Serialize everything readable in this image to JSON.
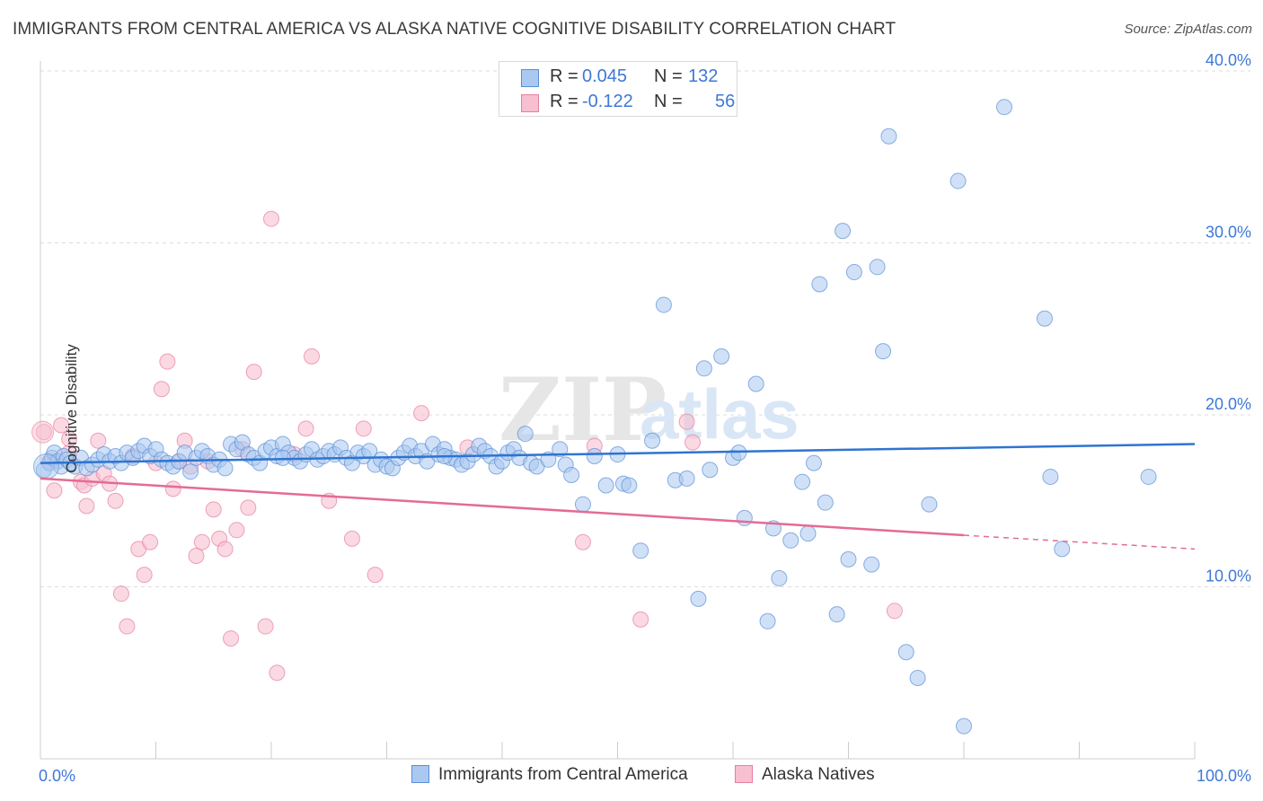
{
  "title": "IMMIGRANTS FROM CENTRAL AMERICA VS ALASKA NATIVE COGNITIVE DISABILITY CORRELATION CHART",
  "source": "Source: ZipAtlas.com",
  "watermark": {
    "zip": "ZIP",
    "atlas": "atlas"
  },
  "legend": {
    "r_label": "R =",
    "n_label": "N =",
    "rows": [
      {
        "r": "0.045",
        "n": "132",
        "color": "#aac8f0",
        "stroke": "#5b8fd6"
      },
      {
        "r": "-0.122",
        "n": "56",
        "color": "#f7bfd0",
        "stroke": "#e87ea0"
      }
    ]
  },
  "bottom_legend": [
    {
      "label": "Immigrants from Central America",
      "color": "#aac8f0",
      "stroke": "#5b8fd6"
    },
    {
      "label": "Alaska Natives",
      "color": "#f7bfd0",
      "stroke": "#e87ea0"
    }
  ],
  "chart_data": {
    "type": "scatter",
    "title": "IMMIGRANTS FROM CENTRAL AMERICA VS ALASKA NATIVE COGNITIVE DISABILITY CORRELATION CHART",
    "xlabel": "",
    "ylabel": "Cognitive Disability",
    "xlim": [
      0,
      100
    ],
    "ylim": [
      0,
      41
    ],
    "x_tick_labels": [
      "0.0%",
      "100.0%"
    ],
    "y_ticks": [
      10,
      20,
      30,
      40
    ],
    "y_tick_labels": [
      "10.0%",
      "20.0%",
      "30.0%",
      "40.0%"
    ],
    "grid": "horizontal dashed",
    "legend_position": "top-center",
    "series": [
      {
        "name": "Immigrants from Central America",
        "color": "#5b8fd6",
        "fill": "#aac8f0",
        "trend": {
          "x": [
            0,
            100
          ],
          "y": [
            17.2,
            18.3
          ]
        },
        "points": [
          [
            0.3,
            16.8
          ],
          [
            0.8,
            17.2
          ],
          [
            1.0,
            17.5
          ],
          [
            1.2,
            17.8
          ],
          [
            1.5,
            17.3
          ],
          [
            1.8,
            17.0
          ],
          [
            2.0,
            17.6
          ],
          [
            2.3,
            17.4
          ],
          [
            2.6,
            17.2
          ],
          [
            3.0,
            17.0
          ],
          [
            3.5,
            17.5
          ],
          [
            4.0,
            16.9
          ],
          [
            4.5,
            17.1
          ],
          [
            5.0,
            17.4
          ],
          [
            5.5,
            17.7
          ],
          [
            6.0,
            17.3
          ],
          [
            6.5,
            17.6
          ],
          [
            7.0,
            17.2
          ],
          [
            7.5,
            17.8
          ],
          [
            8.0,
            17.5
          ],
          [
            8.5,
            17.9
          ],
          [
            9.0,
            18.2
          ],
          [
            9.5,
            17.6
          ],
          [
            10.0,
            18.0
          ],
          [
            10.5,
            17.4
          ],
          [
            11.0,
            17.2
          ],
          [
            11.5,
            17.0
          ],
          [
            12.0,
            17.3
          ],
          [
            12.5,
            17.8
          ],
          [
            13.0,
            16.7
          ],
          [
            13.5,
            17.5
          ],
          [
            14.0,
            17.9
          ],
          [
            14.5,
            17.6
          ],
          [
            15.0,
            17.1
          ],
          [
            15.5,
            17.4
          ],
          [
            16.0,
            16.9
          ],
          [
            16.5,
            18.3
          ],
          [
            17.0,
            18.0
          ],
          [
            17.5,
            18.4
          ],
          [
            18.0,
            17.7
          ],
          [
            18.5,
            17.5
          ],
          [
            19.0,
            17.2
          ],
          [
            19.5,
            17.9
          ],
          [
            20.0,
            18.1
          ],
          [
            20.5,
            17.6
          ],
          [
            21.0,
            18.3
          ],
          [
            21.5,
            17.8
          ],
          [
            22.0,
            17.5
          ],
          [
            22.5,
            17.3
          ],
          [
            23.0,
            17.7
          ],
          [
            23.5,
            18.0
          ],
          [
            24.0,
            17.4
          ],
          [
            24.5,
            17.6
          ],
          [
            25.0,
            17.9
          ],
          [
            25.5,
            17.7
          ],
          [
            26.0,
            18.1
          ],
          [
            26.5,
            17.5
          ],
          [
            27.0,
            17.2
          ],
          [
            27.5,
            17.8
          ],
          [
            28.0,
            17.6
          ],
          [
            28.5,
            17.9
          ],
          [
            29.0,
            17.1
          ],
          [
            29.5,
            17.4
          ],
          [
            30.0,
            17.0
          ],
          [
            30.5,
            16.9
          ],
          [
            31.0,
            17.5
          ],
          [
            31.5,
            17.8
          ],
          [
            32.0,
            18.2
          ],
          [
            32.5,
            17.6
          ],
          [
            33.0,
            17.9
          ],
          [
            33.5,
            17.3
          ],
          [
            34.0,
            18.3
          ],
          [
            34.5,
            17.7
          ],
          [
            35.0,
            18.0
          ],
          [
            35.5,
            17.5
          ],
          [
            36.0,
            17.4
          ],
          [
            36.5,
            17.1
          ],
          [
            37.0,
            17.3
          ],
          [
            37.5,
            17.7
          ],
          [
            38.0,
            18.2
          ],
          [
            38.5,
            17.9
          ],
          [
            39.0,
            17.6
          ],
          [
            39.5,
            17.0
          ],
          [
            40.0,
            17.3
          ],
          [
            40.5,
            17.8
          ],
          [
            41.0,
            18.0
          ],
          [
            41.5,
            17.5
          ],
          [
            42.0,
            18.9
          ],
          [
            42.5,
            17.2
          ],
          [
            43.0,
            17.0
          ],
          [
            44.0,
            17.4
          ],
          [
            45.0,
            18.0
          ],
          [
            45.5,
            17.1
          ],
          [
            46.0,
            16.5
          ],
          [
            47.0,
            14.8
          ],
          [
            48.0,
            17.6
          ],
          [
            49.0,
            15.9
          ],
          [
            50.0,
            17.7
          ],
          [
            50.5,
            16.0
          ],
          [
            51.0,
            15.9
          ],
          [
            52.0,
            12.1
          ],
          [
            53.0,
            18.5
          ],
          [
            54.0,
            26.4
          ],
          [
            55.0,
            16.2
          ],
          [
            56.0,
            16.3
          ],
          [
            57.0,
            9.3
          ],
          [
            57.5,
            22.7
          ],
          [
            58.0,
            16.8
          ],
          [
            59.0,
            23.4
          ],
          [
            60.0,
            17.5
          ],
          [
            60.5,
            17.8
          ],
          [
            61.0,
            14.0
          ],
          [
            62.0,
            21.8
          ],
          [
            63.0,
            8.0
          ],
          [
            63.5,
            13.4
          ],
          [
            64.0,
            10.5
          ],
          [
            65.0,
            12.7
          ],
          [
            66.0,
            16.1
          ],
          [
            66.5,
            13.1
          ],
          [
            67.0,
            17.2
          ],
          [
            67.5,
            27.6
          ],
          [
            68.0,
            14.9
          ],
          [
            69.0,
            8.4
          ],
          [
            69.5,
            30.7
          ],
          [
            70.0,
            11.6
          ],
          [
            70.5,
            28.3
          ],
          [
            72.0,
            11.3
          ],
          [
            72.5,
            28.6
          ],
          [
            73.0,
            23.7
          ],
          [
            73.5,
            36.2
          ],
          [
            75.0,
            6.2
          ],
          [
            76.0,
            4.7
          ],
          [
            77.0,
            14.8
          ],
          [
            79.5,
            33.6
          ],
          [
            80.0,
            1.9
          ],
          [
            83.5,
            37.9
          ],
          [
            87.0,
            25.6
          ],
          [
            87.5,
            16.4
          ],
          [
            88.5,
            12.2
          ],
          [
            96.0,
            16.4
          ],
          [
            21.0,
            17.5
          ],
          [
            35.0,
            17.6
          ]
        ]
      },
      {
        "name": "Alaska Natives",
        "color": "#e87ea0",
        "fill": "#f7bfd0",
        "trend": {
          "x": [
            0,
            80
          ],
          "y": [
            16.3,
            13.0
          ]
        },
        "trend_dashed": {
          "x": [
            80,
            100
          ],
          "y": [
            13.0,
            12.2
          ]
        },
        "points": [
          [
            0.3,
            19.0
          ],
          [
            0.8,
            17.3
          ],
          [
            1.2,
            15.6
          ],
          [
            1.8,
            19.4
          ],
          [
            2.5,
            17.8
          ],
          [
            2.5,
            18.6
          ],
          [
            3.5,
            16.1
          ],
          [
            3.8,
            15.9
          ],
          [
            4.0,
            14.7
          ],
          [
            4.5,
            16.3
          ],
          [
            5.0,
            18.5
          ],
          [
            5.5,
            16.6
          ],
          [
            6.0,
            16.0
          ],
          [
            6.5,
            15.0
          ],
          [
            7.0,
            9.6
          ],
          [
            7.5,
            7.7
          ],
          [
            8.0,
            17.6
          ],
          [
            8.5,
            12.2
          ],
          [
            9.0,
            10.7
          ],
          [
            9.5,
            12.6
          ],
          [
            10.0,
            17.2
          ],
          [
            10.5,
            21.5
          ],
          [
            11.0,
            23.1
          ],
          [
            11.5,
            15.7
          ],
          [
            12.0,
            17.3
          ],
          [
            12.5,
            18.5
          ],
          [
            13.0,
            17.0
          ],
          [
            13.5,
            11.8
          ],
          [
            14.0,
            12.6
          ],
          [
            14.5,
            17.3
          ],
          [
            15.0,
            14.5
          ],
          [
            15.5,
            12.8
          ],
          [
            16.0,
            12.2
          ],
          [
            16.5,
            7.0
          ],
          [
            17.0,
            13.3
          ],
          [
            17.5,
            18.0
          ],
          [
            18.0,
            14.6
          ],
          [
            18.5,
            22.5
          ],
          [
            19.5,
            7.7
          ],
          [
            20.0,
            31.4
          ],
          [
            20.5,
            5.0
          ],
          [
            22.0,
            17.7
          ],
          [
            23.0,
            19.2
          ],
          [
            23.5,
            23.4
          ],
          [
            25.0,
            15.0
          ],
          [
            27.0,
            12.8
          ],
          [
            28.0,
            19.2
          ],
          [
            29.0,
            10.7
          ],
          [
            33.0,
            20.1
          ],
          [
            37.0,
            18.1
          ],
          [
            47.0,
            12.6
          ],
          [
            48.0,
            18.2
          ],
          [
            52.0,
            8.1
          ],
          [
            56.0,
            19.6
          ],
          [
            56.5,
            18.4
          ],
          [
            74.0,
            8.6
          ]
        ]
      }
    ]
  }
}
